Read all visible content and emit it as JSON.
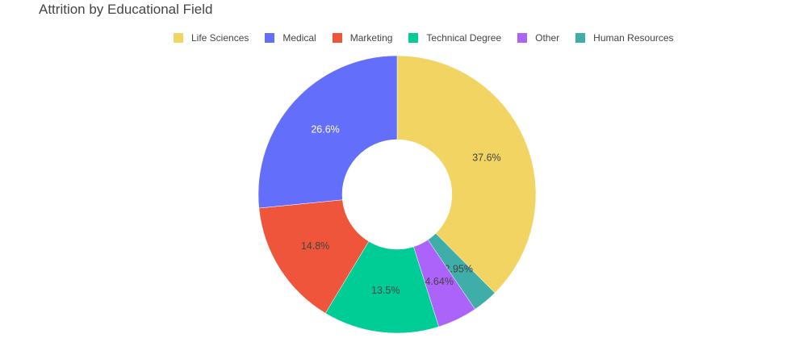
{
  "chart_data": {
    "type": "pie",
    "hole": true,
    "title": "Attrition by Educational Field",
    "legend_position": "top",
    "direction": "clockwise",
    "slices": [
      {
        "label": "Life Sciences",
        "value": 37.6,
        "display": "37.6%",
        "color": "#F2D462",
        "label_color": "#444444"
      },
      {
        "label": "Technical Degree",
        "value": 13.5,
        "display": "13.5%",
        "color": "#00CC96",
        "label_color": "#444444"
      },
      {
        "label": "Human Resources",
        "value": 2.95,
        "display": "2.95%",
        "color": "#3FADA8",
        "label_color": "#444444"
      },
      {
        "label": "Other",
        "value": 4.64,
        "display": "4.64%",
        "color": "#AB63FA",
        "label_color": "#444444"
      },
      {
        "label": "Marketing",
        "value": 14.8,
        "display": "14.8%",
        "color": "#EF553B",
        "label_color": "#444444"
      },
      {
        "label": "Medical",
        "value": 26.6,
        "display": "26.6%",
        "color": "#636EFA",
        "label_color": "#ffffff"
      }
    ],
    "slice_order": [
      "Life Sciences",
      "Human Resources",
      "Other",
      "Technical Degree",
      "Marketing",
      "Medical"
    ],
    "legend_order": [
      "Life Sciences",
      "Medical",
      "Marketing",
      "Technical Degree",
      "Other",
      "Human Resources"
    ]
  }
}
